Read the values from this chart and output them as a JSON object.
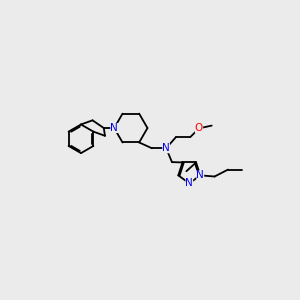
{
  "background_color": "#ebebeb",
  "atom_colors": {
    "N": "#0000ee",
    "O": "#ff0000",
    "C": "#000000"
  },
  "fig_width": 3.0,
  "fig_height": 3.0,
  "lw": 1.3,
  "font_size": 7.5
}
